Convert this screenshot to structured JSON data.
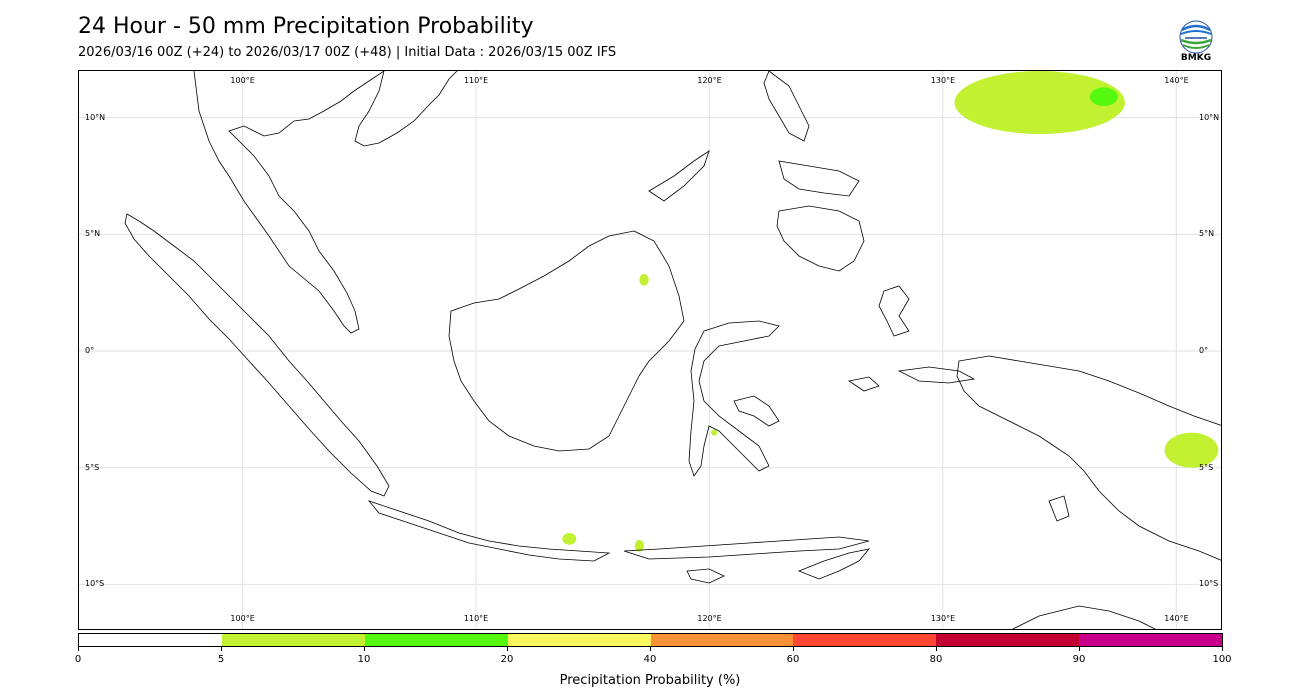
{
  "header": {
    "title": "24 Hour - 50 mm Precipitation Probability",
    "subtitle": "2026/03/16 00Z (+24) to 2026/03/17 00Z (+48) | Initial Data : 2026/03/15 00Z IFS"
  },
  "logo": {
    "text": "BMKG",
    "icon": "bmkg-globe-icon"
  },
  "map": {
    "lon_range": [
      93,
      142
    ],
    "lat_range": [
      -12,
      12
    ],
    "lon_labels": [
      "100°E",
      "110°E",
      "120°E",
      "130°E",
      "140°E"
    ],
    "lat_labels": [
      "10°N",
      "5°N",
      "0°",
      "5°S",
      "10°S"
    ],
    "gridlines": true,
    "coastline_color": "#000000",
    "precipitation_areas": [
      {
        "label": "northeast-pacific-cluster",
        "lon": [
          130.5,
          137.8
        ],
        "lat": [
          9.3,
          12
        ],
        "level": "5-10"
      },
      {
        "label": "northeast-pacific-core",
        "lon": [
          136.3,
          137.5
        ],
        "lat": [
          10.5,
          11.3
        ],
        "level": "10-20"
      },
      {
        "label": "papua-highlands",
        "lon": [
          139.5,
          141.8
        ],
        "lat": [
          -5.0,
          -3.5
        ],
        "level": "5-10"
      },
      {
        "label": "east-java-spot",
        "lon": [
          113.7,
          114.3
        ],
        "lat": [
          -8.3,
          -7.8
        ],
        "level": "5-10"
      },
      {
        "label": "lesser-sunda-spot",
        "lon": [
          116.8,
          117.2
        ],
        "lat": [
          -8.6,
          -8.1
        ],
        "level": "5-10"
      },
      {
        "label": "north-kalimantan-spot",
        "lon": [
          117.0,
          117.4
        ],
        "lat": [
          2.8,
          3.3
        ],
        "level": "5-10"
      },
      {
        "label": "sulawesi-spot",
        "lon": [
          120.1,
          120.3
        ],
        "lat": [
          -3.6,
          -3.4
        ],
        "level": "5-10"
      }
    ]
  },
  "colorbar": {
    "title": "Precipitation Probability (%)",
    "ticks": [
      "0",
      "5",
      "10",
      "20",
      "40",
      "60",
      "80",
      "90",
      "100"
    ],
    "colors": [
      "#ffffff",
      "#c1f130",
      "#55f80f",
      "#fdf862",
      "#fd9135",
      "#fd4730",
      "#c3002f",
      "#c8008c"
    ]
  }
}
